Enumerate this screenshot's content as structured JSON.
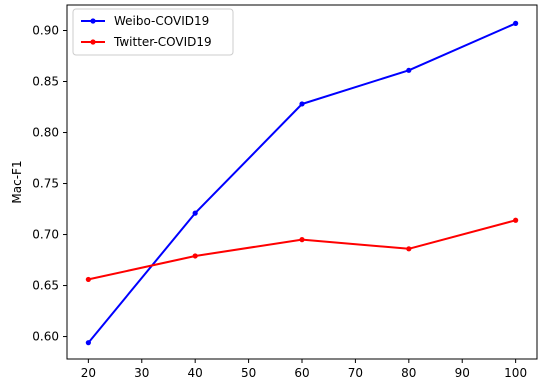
{
  "chart_data": {
    "type": "line",
    "title": "",
    "xlabel": "",
    "ylabel": "Mac-F1",
    "x": [
      20,
      40,
      60,
      80,
      100
    ],
    "xticks": [
      20,
      30,
      40,
      50,
      60,
      70,
      80,
      90,
      100
    ],
    "yticks": [
      0.6,
      0.65,
      0.7,
      0.75,
      0.8,
      0.85,
      0.9
    ],
    "xlim": [
      16,
      104
    ],
    "ylim": [
      0.578,
      0.925
    ],
    "grid": false,
    "legend": "top-left",
    "series": [
      {
        "name": "Weibo-COVID19",
        "color": "#0000ff",
        "values": [
          0.594,
          0.721,
          0.828,
          0.861,
          0.907
        ]
      },
      {
        "name": "Twitter-COVID19",
        "color": "#ff0000",
        "values": [
          0.656,
          0.679,
          0.695,
          0.686,
          0.714
        ]
      }
    ]
  }
}
